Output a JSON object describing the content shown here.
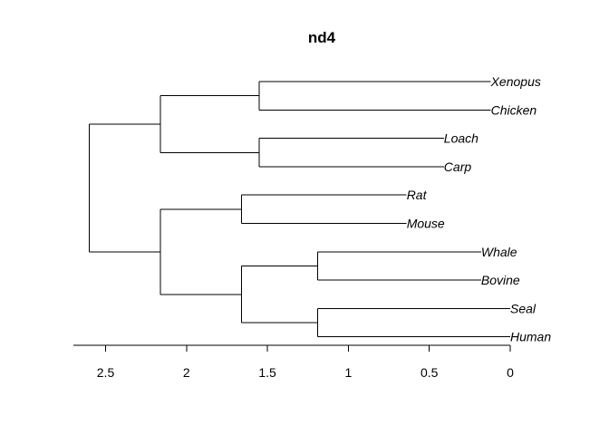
{
  "chart_data": {
    "type": "dendrogram",
    "title": "nd4",
    "x_axis": {
      "ticks": [
        2.5,
        2,
        1.5,
        1,
        0.5,
        0
      ],
      "tick_labels": [
        "2.5",
        "2",
        "1.5",
        "1",
        "0.5",
        "0"
      ],
      "range": [
        2.7,
        0
      ],
      "reversed": true
    },
    "leaves": [
      {
        "name": "Xenopus",
        "height": 0.12
      },
      {
        "name": "Chicken",
        "height": 0.12
      },
      {
        "name": "Loach",
        "height": 0.41
      },
      {
        "name": "Carp",
        "height": 0.41
      },
      {
        "name": "Rat",
        "height": 0.64
      },
      {
        "name": "Mouse",
        "height": 0.64
      },
      {
        "name": "Whale",
        "height": 0.18
      },
      {
        "name": "Bovine",
        "height": 0.18
      },
      {
        "name": "Seal",
        "height": 0.0
      },
      {
        "name": "Human",
        "height": 0.0
      }
    ],
    "merges": [
      {
        "id": "m1",
        "children": [
          "Xenopus",
          "Chicken"
        ],
        "height": 1.55
      },
      {
        "id": "m2",
        "children": [
          "Loach",
          "Carp"
        ],
        "height": 1.55
      },
      {
        "id": "m3",
        "children": [
          "Rat",
          "Mouse"
        ],
        "height": 1.66
      },
      {
        "id": "m4",
        "children": [
          "Whale",
          "Bovine"
        ],
        "height": 1.19
      },
      {
        "id": "m5",
        "children": [
          "Seal",
          "Human"
        ],
        "height": 1.19
      },
      {
        "id": "m6",
        "children": [
          "m4",
          "m5"
        ],
        "height": 1.66
      },
      {
        "id": "m7",
        "children": [
          "m1",
          "m2"
        ],
        "height": 2.16
      },
      {
        "id": "m8",
        "children": [
          "m3",
          "m6"
        ],
        "height": 2.16
      },
      {
        "id": "m9",
        "children": [
          "m7",
          "m8"
        ],
        "height": 2.6
      }
    ]
  }
}
